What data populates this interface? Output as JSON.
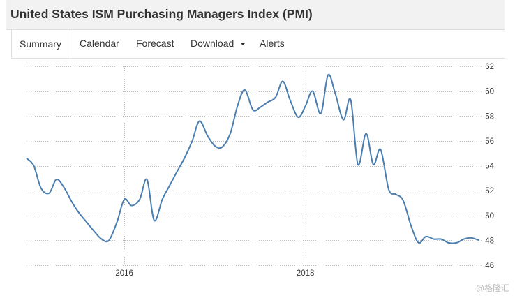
{
  "header": {
    "title": "United States ISM Purchasing Managers Index (PMI)"
  },
  "tabs": [
    {
      "label": "Summary",
      "active": true
    },
    {
      "label": "Calendar"
    },
    {
      "label": "Forecast"
    },
    {
      "label": "Download",
      "has_dropdown": true
    },
    {
      "label": "Alerts"
    }
  ],
  "watermark": "@格隆汇",
  "colors": {
    "line": "#4a7eb0",
    "grid": "#bdbdbd",
    "axis_text": "#333333"
  },
  "chart_data": {
    "type": "line",
    "title": "",
    "xlabel": "",
    "ylabel": "",
    "ylim": [
      46,
      62
    ],
    "yticks": [
      46,
      48,
      50,
      52,
      54,
      56,
      58,
      60,
      62
    ],
    "xlim": [
      2014.92,
      2019.96
    ],
    "xticks": [
      2016,
      2018
    ],
    "xtick_labels": [
      "2016",
      "2018"
    ],
    "grid": true,
    "legend": "none",
    "series": [
      {
        "x": [
          2014.92,
          2015.0,
          2015.08,
          2015.17,
          2015.25,
          2015.33,
          2015.42,
          2015.5,
          2015.58,
          2015.67,
          2015.75,
          2015.83,
          2015.92,
          2016.0,
          2016.08,
          2016.17,
          2016.25,
          2016.33,
          2016.42,
          2016.5,
          2016.58,
          2016.67,
          2016.75,
          2016.83,
          2016.92,
          2017.0,
          2017.08,
          2017.17,
          2017.25,
          2017.33,
          2017.42,
          2017.5,
          2017.58,
          2017.67,
          2017.75,
          2017.83,
          2017.92,
          2018.0,
          2018.08,
          2018.17,
          2018.25,
          2018.33,
          2018.42,
          2018.5,
          2018.58,
          2018.67,
          2018.75,
          2018.83,
          2018.92,
          2019.0,
          2019.08,
          2019.17,
          2019.25,
          2019.33,
          2019.42,
          2019.5,
          2019.58,
          2019.67,
          2019.75,
          2019.83,
          2019.92
        ],
        "values": [
          54.6,
          54.0,
          52.2,
          51.8,
          52.9,
          52.3,
          51.1,
          50.2,
          49.5,
          48.7,
          48.1,
          48.0,
          49.5,
          51.3,
          50.8,
          51.3,
          52.9,
          49.6,
          51.3,
          52.4,
          53.5,
          54.7,
          56.0,
          57.6,
          56.4,
          55.6,
          55.5,
          56.6,
          58.8,
          60.1,
          58.5,
          58.7,
          59.1,
          59.5,
          60.8,
          59.3,
          57.9,
          58.8,
          60.0,
          58.2,
          61.3,
          59.8,
          57.7,
          59.3,
          54.1,
          56.6,
          54.1,
          55.3,
          52.1,
          51.7,
          51.2,
          49.1,
          47.8,
          48.3,
          48.1,
          48.1,
          47.8,
          47.8,
          48.1,
          48.2,
          48.0
        ]
      }
    ]
  }
}
